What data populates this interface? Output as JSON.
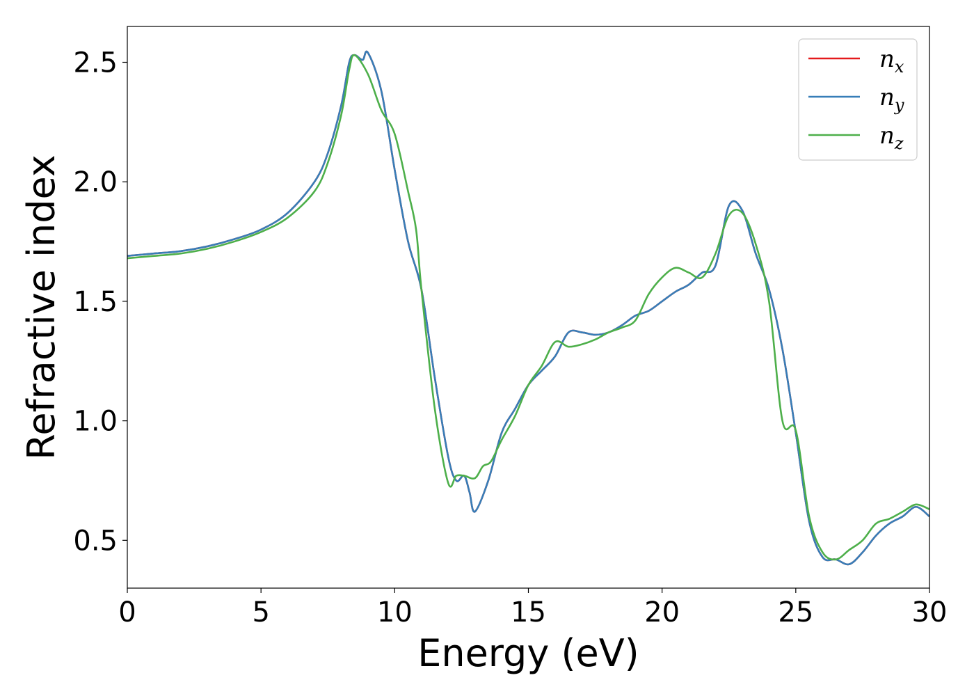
{
  "chart_data": {
    "type": "line",
    "xlabel": "Energy (eV)",
    "ylabel": "Refractive index",
    "xlim": [
      0,
      30
    ],
    "ylim": [
      0.3,
      2.65
    ],
    "xticks": [
      0,
      5,
      10,
      15,
      20,
      25,
      30
    ],
    "xtick_labels": [
      "0",
      "5",
      "10",
      "15",
      "20",
      "25",
      "30"
    ],
    "yticks": [
      0.5,
      1.0,
      1.5,
      2.0,
      2.5
    ],
    "ytick_labels": [
      "0.5",
      "1.0",
      "1.5",
      "2.0",
      "2.5"
    ],
    "grid": false,
    "legend_position": "top-right",
    "series": [
      {
        "name": "n_x",
        "label_main": "n",
        "label_sub": "x",
        "color": "#e41a1c",
        "x": [
          0,
          1,
          2,
          3,
          4,
          5,
          6,
          7,
          7.5,
          8,
          8.3,
          8.5,
          8.8,
          9,
          9.5,
          10,
          10.5,
          11,
          11.5,
          12,
          12.3,
          12.6,
          12.8,
          13,
          13.5,
          14,
          14.5,
          15,
          15.5,
          16,
          16.5,
          17,
          17.5,
          18,
          18.5,
          19,
          19.5,
          20,
          20.5,
          21,
          21.5,
          22,
          22.5,
          23,
          23.5,
          24,
          24.5,
          25,
          25.5,
          26,
          26.5,
          27,
          27.5,
          28,
          28.5,
          29,
          29.5,
          30
        ],
        "y": [
          1.69,
          1.7,
          1.71,
          1.73,
          1.76,
          1.8,
          1.87,
          2.0,
          2.12,
          2.32,
          2.5,
          2.53,
          2.51,
          2.54,
          2.38,
          2.05,
          1.75,
          1.55,
          1.18,
          0.85,
          0.75,
          0.77,
          0.7,
          0.62,
          0.75,
          0.95,
          1.05,
          1.15,
          1.21,
          1.27,
          1.37,
          1.37,
          1.36,
          1.37,
          1.4,
          1.44,
          1.46,
          1.5,
          1.54,
          1.57,
          1.62,
          1.65,
          1.9,
          1.88,
          1.7,
          1.55,
          1.3,
          0.95,
          0.58,
          0.43,
          0.42,
          0.4,
          0.45,
          0.52,
          0.57,
          0.6,
          0.64,
          0.6
        ]
      },
      {
        "name": "n_y",
        "label_main": "n",
        "label_sub": "y",
        "color": "#377eb8",
        "x": [
          0,
          1,
          2,
          3,
          4,
          5,
          6,
          7,
          7.5,
          8,
          8.3,
          8.5,
          8.8,
          9,
          9.5,
          10,
          10.5,
          11,
          11.5,
          12,
          12.3,
          12.6,
          12.8,
          13,
          13.5,
          14,
          14.5,
          15,
          15.5,
          16,
          16.5,
          17,
          17.5,
          18,
          18.5,
          19,
          19.5,
          20,
          20.5,
          21,
          21.5,
          22,
          22.5,
          23,
          23.5,
          24,
          24.5,
          25,
          25.5,
          26,
          26.5,
          27,
          27.5,
          28,
          28.5,
          29,
          29.5,
          30
        ],
        "y": [
          1.69,
          1.7,
          1.71,
          1.73,
          1.76,
          1.8,
          1.87,
          2.0,
          2.12,
          2.32,
          2.5,
          2.53,
          2.51,
          2.54,
          2.38,
          2.05,
          1.75,
          1.55,
          1.18,
          0.85,
          0.75,
          0.77,
          0.7,
          0.62,
          0.75,
          0.95,
          1.05,
          1.15,
          1.21,
          1.27,
          1.37,
          1.37,
          1.36,
          1.37,
          1.4,
          1.44,
          1.46,
          1.5,
          1.54,
          1.57,
          1.62,
          1.65,
          1.9,
          1.88,
          1.7,
          1.55,
          1.3,
          0.95,
          0.58,
          0.43,
          0.42,
          0.4,
          0.45,
          0.52,
          0.57,
          0.6,
          0.64,
          0.6
        ]
      },
      {
        "name": "n_z",
        "label_main": "n",
        "label_sub": "z",
        "color": "#4daf4a",
        "x": [
          0,
          1,
          2,
          3,
          4,
          5,
          6,
          7,
          7.5,
          8,
          8.3,
          8.5,
          9,
          9.5,
          10,
          10.5,
          10.8,
          11,
          11.5,
          12,
          12.3,
          12.6,
          13,
          13.3,
          13.6,
          14,
          14.5,
          15,
          15.5,
          16,
          16.5,
          17,
          17.5,
          18,
          18.5,
          19,
          19.5,
          20,
          20.5,
          21,
          21.5,
          22,
          22.5,
          23,
          23.5,
          24,
          24.5,
          25,
          25.5,
          26,
          26.5,
          27,
          27.5,
          28,
          28.5,
          29,
          29.5,
          30
        ],
        "y": [
          1.68,
          1.69,
          1.7,
          1.72,
          1.75,
          1.79,
          1.85,
          1.96,
          2.08,
          2.28,
          2.47,
          2.53,
          2.45,
          2.3,
          2.2,
          1.96,
          1.8,
          1.55,
          1.05,
          0.74,
          0.77,
          0.77,
          0.76,
          0.81,
          0.83,
          0.92,
          1.02,
          1.15,
          1.23,
          1.33,
          1.31,
          1.32,
          1.34,
          1.37,
          1.39,
          1.42,
          1.53,
          1.6,
          1.64,
          1.62,
          1.6,
          1.7,
          1.86,
          1.87,
          1.74,
          1.5,
          1.0,
          0.96,
          0.6,
          0.45,
          0.42,
          0.46,
          0.5,
          0.57,
          0.59,
          0.62,
          0.65,
          0.63
        ]
      }
    ]
  }
}
